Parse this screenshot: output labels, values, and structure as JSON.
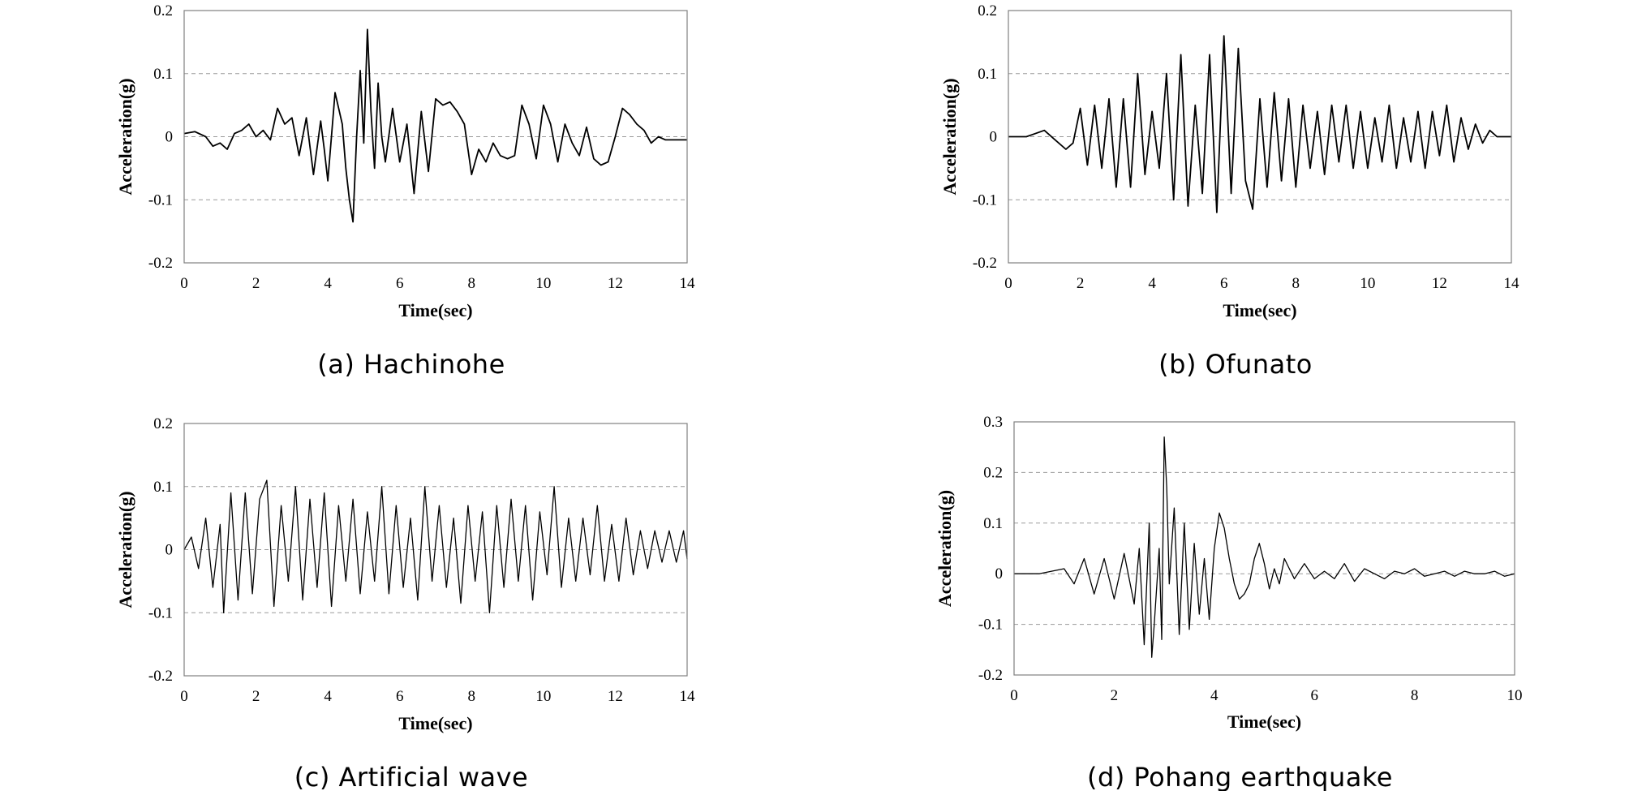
{
  "chart_data": [
    {
      "type": "line",
      "caption": "(a) Hachinohe",
      "xlabel": "Time(sec)",
      "ylabel": "Acceleration(g)",
      "xlim": [
        0,
        14
      ],
      "ylim": [
        -0.2,
        0.2
      ],
      "xticks": [
        0,
        2,
        4,
        6,
        8,
        10,
        12,
        14
      ],
      "yticks": [
        -0.2,
        -0.1,
        0,
        0.1,
        0.2
      ],
      "ytick_labels": [
        "-0.2",
        "-0.1",
        "0",
        "0.1",
        "0.2"
      ],
      "grid": "horizontal-dashed",
      "series": [
        {
          "x": [
            0,
            0.3,
            0.6,
            0.8,
            1.0,
            1.2,
            1.4,
            1.6,
            1.8,
            2.0,
            2.2,
            2.4,
            2.6,
            2.8,
            3.0,
            3.2,
            3.4,
            3.6,
            3.8,
            3.9,
            4.0,
            4.2,
            4.4,
            4.5,
            4.6,
            4.7,
            4.8,
            4.9,
            5.0,
            5.1,
            5.2,
            5.3,
            5.4,
            5.5,
            5.6,
            5.8,
            6.0,
            6.2,
            6.4,
            6.6,
            6.8,
            7.0,
            7.2,
            7.4,
            7.6,
            7.8,
            8.0,
            8.2,
            8.4,
            8.6,
            8.8,
            9.0,
            9.2,
            9.4,
            9.6,
            9.8,
            10.0,
            10.2,
            10.4,
            10.6,
            10.8,
            11.0,
            11.2,
            11.4,
            11.6,
            11.8,
            12.0,
            12.2,
            12.4,
            12.6,
            12.8,
            13.0,
            13.2,
            13.4,
            13.6,
            13.8,
            14.0
          ],
          "y": [
            0.005,
            0.008,
            0.0,
            -0.015,
            -0.01,
            -0.02,
            0.005,
            0.01,
            0.02,
            0.0,
            0.01,
            -0.005,
            0.045,
            0.02,
            0.03,
            -0.03,
            0.03,
            -0.06,
            0.025,
            -0.02,
            -0.07,
            0.07,
            0.02,
            -0.05,
            -0.1,
            -0.135,
            0.0,
            0.105,
            -0.01,
            0.17,
            0.04,
            -0.05,
            0.085,
            0.0,
            -0.04,
            0.045,
            -0.04,
            0.02,
            -0.09,
            0.04,
            -0.055,
            0.06,
            0.05,
            0.055,
            0.04,
            0.02,
            -0.06,
            -0.02,
            -0.04,
            -0.01,
            -0.03,
            -0.035,
            -0.03,
            0.05,
            0.02,
            -0.035,
            0.05,
            0.02,
            -0.04,
            0.02,
            -0.01,
            -0.03,
            0.015,
            -0.035,
            -0.045,
            -0.04,
            0.0,
            0.045,
            0.035,
            0.02,
            0.01,
            -0.01,
            0.0,
            -0.005,
            -0.005,
            -0.005,
            -0.005
          ]
        }
      ]
    },
    {
      "type": "line",
      "caption": "(b) Ofunato",
      "xlabel": "Time(sec)",
      "ylabel": "Acceleration(g)",
      "xlim": [
        0,
        14
      ],
      "ylim": [
        -0.2,
        0.2
      ],
      "xticks": [
        0,
        2,
        4,
        6,
        8,
        10,
        12,
        14
      ],
      "yticks": [
        -0.2,
        -0.1,
        0,
        0.1,
        0.2
      ],
      "ytick_labels": [
        "-0.2",
        "-0.1",
        "0",
        "0.1",
        "0.2"
      ],
      "grid": "horizontal-dashed",
      "series": [
        {
          "x": [
            0,
            0.5,
            1.0,
            1.3,
            1.6,
            1.8,
            2.0,
            2.2,
            2.4,
            2.6,
            2.8,
            3.0,
            3.2,
            3.4,
            3.6,
            3.8,
            4.0,
            4.2,
            4.4,
            4.6,
            4.8,
            5.0,
            5.2,
            5.4,
            5.6,
            5.8,
            6.0,
            6.2,
            6.4,
            6.6,
            6.8,
            7.0,
            7.2,
            7.4,
            7.6,
            7.8,
            8.0,
            8.2,
            8.4,
            8.6,
            8.8,
            9.0,
            9.2,
            9.4,
            9.6,
            9.8,
            10.0,
            10.2,
            10.4,
            10.6,
            10.8,
            11.0,
            11.2,
            11.4,
            11.6,
            11.8,
            12.0,
            12.2,
            12.4,
            12.6,
            12.8,
            13.0,
            13.2,
            13.4,
            13.6,
            13.8,
            14.0
          ],
          "y": [
            0.0,
            0.0,
            0.01,
            -0.005,
            -0.02,
            -0.01,
            0.045,
            -0.045,
            0.05,
            -0.05,
            0.06,
            -0.08,
            0.06,
            -0.08,
            0.1,
            -0.06,
            0.04,
            -0.05,
            0.1,
            -0.1,
            0.13,
            -0.11,
            0.05,
            -0.09,
            0.13,
            -0.12,
            0.16,
            -0.09,
            0.14,
            -0.07,
            -0.115,
            0.06,
            -0.08,
            0.07,
            -0.07,
            0.06,
            -0.08,
            0.05,
            -0.05,
            0.04,
            -0.06,
            0.05,
            -0.04,
            0.05,
            -0.05,
            0.04,
            -0.05,
            0.03,
            -0.04,
            0.05,
            -0.05,
            0.03,
            -0.04,
            0.04,
            -0.05,
            0.04,
            -0.03,
            0.05,
            -0.04,
            0.03,
            -0.02,
            0.02,
            -0.01,
            0.01,
            0.0,
            0.0,
            0.0
          ]
        }
      ]
    },
    {
      "type": "line",
      "caption": "(c) Artificial wave",
      "xlabel": "Time(sec)",
      "ylabel": "Acceleration(g)",
      "xlim": [
        0,
        14
      ],
      "ylim": [
        -0.2,
        0.2
      ],
      "xticks": [
        0,
        2,
        4,
        6,
        8,
        10,
        12,
        14
      ],
      "yticks": [
        -0.2,
        -0.1,
        0,
        0.1,
        0.2
      ],
      "ytick_labels": [
        "-0.2",
        "-0.1",
        "0",
        "0.1",
        "0.2"
      ],
      "grid": "horizontal-dashed",
      "series": [
        {
          "x": [
            0,
            0.2,
            0.4,
            0.6,
            0.8,
            1.0,
            1.1,
            1.3,
            1.5,
            1.7,
            1.9,
            2.1,
            2.3,
            2.5,
            2.7,
            2.9,
            3.1,
            3.3,
            3.5,
            3.7,
            3.9,
            4.1,
            4.3,
            4.5,
            4.7,
            4.9,
            5.1,
            5.3,
            5.5,
            5.7,
            5.9,
            6.1,
            6.3,
            6.5,
            6.7,
            6.9,
            7.1,
            7.3,
            7.5,
            7.7,
            7.9,
            8.1,
            8.3,
            8.5,
            8.7,
            8.9,
            9.1,
            9.3,
            9.5,
            9.7,
            9.9,
            10.1,
            10.3,
            10.5,
            10.7,
            10.9,
            11.1,
            11.3,
            11.5,
            11.7,
            11.9,
            12.1,
            12.3,
            12.5,
            12.7,
            12.9,
            13.1,
            13.3,
            13.5,
            13.7,
            13.9,
            14.0
          ],
          "y": [
            0.0,
            0.02,
            -0.03,
            0.05,
            -0.06,
            0.04,
            -0.1,
            0.09,
            -0.08,
            0.09,
            -0.07,
            0.08,
            0.11,
            -0.09,
            0.07,
            -0.05,
            0.1,
            -0.08,
            0.08,
            -0.06,
            0.09,
            -0.09,
            0.07,
            -0.05,
            0.08,
            -0.07,
            0.06,
            -0.05,
            0.1,
            -0.07,
            0.07,
            -0.06,
            0.05,
            -0.08,
            0.1,
            -0.05,
            0.07,
            -0.06,
            0.05,
            -0.085,
            0.07,
            -0.05,
            0.06,
            -0.1,
            0.07,
            -0.06,
            0.08,
            -0.05,
            0.07,
            -0.08,
            0.06,
            -0.04,
            0.1,
            -0.06,
            0.05,
            -0.05,
            0.05,
            -0.04,
            0.07,
            -0.05,
            0.04,
            -0.05,
            0.05,
            -0.04,
            0.03,
            -0.03,
            0.03,
            -0.02,
            0.03,
            -0.02,
            0.03,
            -0.015
          ]
        }
      ]
    },
    {
      "type": "line",
      "caption": "(d) Pohang earthquake",
      "xlabel": "Time(sec)",
      "ylabel": "Acceleration(g)",
      "xlim": [
        0,
        10
      ],
      "ylim": [
        -0.2,
        0.3
      ],
      "xticks": [
        0,
        2,
        4,
        6,
        8,
        10
      ],
      "yticks": [
        -0.2,
        -0.1,
        0,
        0.1,
        0.2,
        0.3
      ],
      "ytick_labels": [
        "-0.2",
        "-0.1",
        "0",
        "0.1",
        "0.2",
        "0.3"
      ],
      "grid": "horizontal-dashed",
      "series": [
        {
          "x": [
            0,
            0.5,
            1.0,
            1.2,
            1.4,
            1.6,
            1.8,
            2.0,
            2.2,
            2.4,
            2.5,
            2.6,
            2.7,
            2.75,
            2.8,
            2.9,
            2.95,
            3.0,
            3.05,
            3.1,
            3.2,
            3.3,
            3.4,
            3.5,
            3.6,
            3.7,
            3.8,
            3.9,
            4.0,
            4.1,
            4.2,
            4.3,
            4.4,
            4.5,
            4.6,
            4.7,
            4.8,
            4.9,
            5.0,
            5.1,
            5.2,
            5.3,
            5.4,
            5.5,
            5.6,
            5.8,
            6.0,
            6.2,
            6.4,
            6.6,
            6.8,
            7.0,
            7.2,
            7.4,
            7.6,
            7.8,
            8.0,
            8.2,
            8.4,
            8.6,
            8.8,
            9.0,
            9.2,
            9.4,
            9.6,
            9.8,
            10.0
          ],
          "y": [
            0.0,
            0.0,
            0.01,
            -0.02,
            0.03,
            -0.04,
            0.03,
            -0.05,
            0.04,
            -0.06,
            0.05,
            -0.14,
            0.1,
            -0.165,
            -0.1,
            0.05,
            -0.13,
            0.27,
            0.17,
            -0.02,
            0.13,
            -0.12,
            0.1,
            -0.11,
            0.06,
            -0.08,
            0.03,
            -0.09,
            0.05,
            0.12,
            0.09,
            0.03,
            -0.02,
            -0.05,
            -0.04,
            -0.02,
            0.03,
            0.06,
            0.02,
            -0.03,
            0.01,
            -0.02,
            0.03,
            0.01,
            -0.01,
            0.02,
            -0.01,
            0.005,
            -0.01,
            0.02,
            -0.015,
            0.01,
            0.0,
            -0.01,
            0.005,
            0.0,
            0.01,
            -0.005,
            0.0,
            0.005,
            -0.005,
            0.005,
            0.0,
            0.0,
            0.005,
            -0.005,
            0.0
          ]
        }
      ]
    }
  ]
}
